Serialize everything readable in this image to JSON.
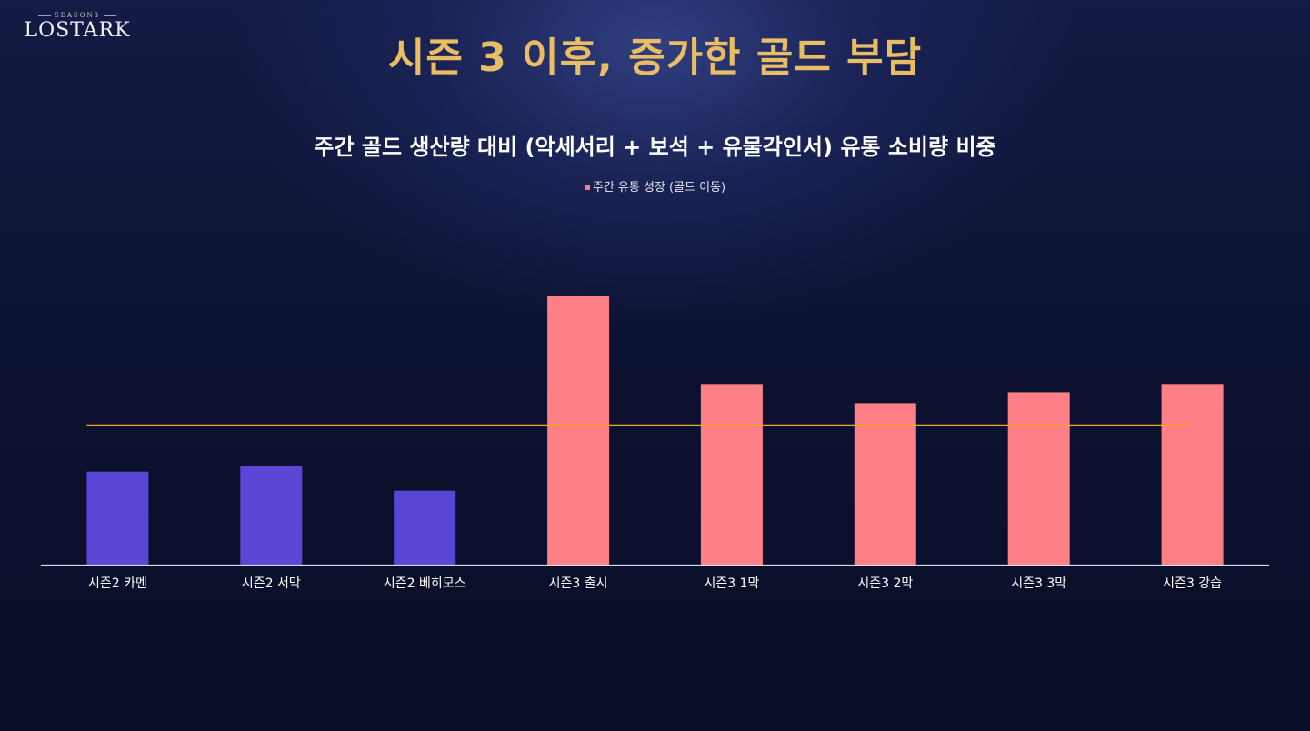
{
  "logo": {
    "season": "SEASON3",
    "wordmark": "LOSTARK"
  },
  "slide_title": "시즌 3 이후, 증가한 골드 부담",
  "chart_data": {
    "type": "bar",
    "title": "주간 골드 생산량 대비 (악세서리 + 보석 + 유물각인서) 유통 소비량 비중",
    "legend": [
      {
        "label": "주간 유통 성장 (골드 이동)",
        "color": "#ff7f86"
      }
    ],
    "legend_position": "top-center",
    "categories": [
      "시즌2 카멘",
      "시즌2 서막",
      "시즌2 베히모스",
      "시즌3 출시",
      "시즌3 1막",
      "시즌3 2막",
      "시즌3 3막",
      "시즌3 강습"
    ],
    "values": [
      34,
      36,
      27,
      98,
      66,
      59,
      63,
      66
    ],
    "bar_colors": [
      "#5a46d4",
      "#5a46d4",
      "#5a46d4",
      "#ff7f86",
      "#ff7f86",
      "#ff7f86",
      "#ff7f86",
      "#ff7f86"
    ],
    "ylim": [
      0,
      100
    ],
    "y_axis_visible": false,
    "grid": false,
    "reference_line": {
      "value": 51,
      "color": "#f0a820"
    },
    "axis_color": "#d8dae4"
  }
}
